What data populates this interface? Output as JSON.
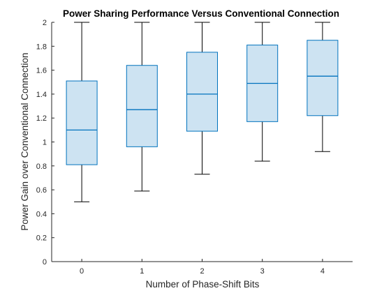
{
  "chart_data": {
    "type": "box",
    "title": "Power Sharing Performance Versus Conventional Connection",
    "xlabel": "Number of Phase-Shift Bits",
    "ylabel": "Power Gain over Conventional Connection",
    "categories": [
      "0",
      "1",
      "2",
      "3",
      "4"
    ],
    "ylim": [
      0,
      2
    ],
    "yticks": [
      "0",
      "0.2",
      "0.4",
      "0.6",
      "0.8",
      "1",
      "1.2",
      "1.4",
      "1.6",
      "1.8",
      "2"
    ],
    "ytick_values": [
      0,
      0.2,
      0.4,
      0.6,
      0.8,
      1,
      1.2,
      1.4,
      1.6,
      1.8,
      2
    ],
    "boxes": [
      {
        "category": "0",
        "whisker_low": 0.5,
        "q1": 0.81,
        "median": 1.1,
        "q3": 1.51,
        "whisker_high": 2.0
      },
      {
        "category": "1",
        "whisker_low": 0.59,
        "q1": 0.96,
        "median": 1.27,
        "q3": 1.64,
        "whisker_high": 2.0
      },
      {
        "category": "2",
        "whisker_low": 0.73,
        "q1": 1.09,
        "median": 1.4,
        "q3": 1.75,
        "whisker_high": 2.0
      },
      {
        "category": "3",
        "whisker_low": 0.84,
        "q1": 1.17,
        "median": 1.49,
        "q3": 1.81,
        "whisker_high": 2.0
      },
      {
        "category": "4",
        "whisker_low": 0.92,
        "q1": 1.22,
        "median": 1.55,
        "q3": 1.85,
        "whisker_high": 2.0
      }
    ],
    "colors": {
      "box_fill": "#cde3f2",
      "box_edge": "#0072bd",
      "whisker": "#000000",
      "axis": "#262626"
    },
    "grid": false,
    "legend": "none"
  }
}
